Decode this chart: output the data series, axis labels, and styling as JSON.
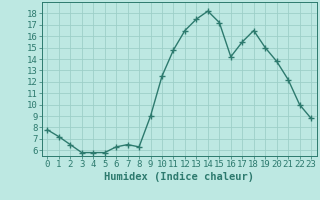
{
  "x": [
    0,
    1,
    2,
    3,
    4,
    5,
    6,
    7,
    8,
    9,
    10,
    11,
    12,
    13,
    14,
    15,
    16,
    17,
    18,
    19,
    20,
    21,
    22,
    23
  ],
  "y": [
    7.8,
    7.2,
    6.5,
    5.8,
    5.8,
    5.8,
    6.3,
    6.5,
    6.3,
    9.0,
    12.5,
    14.8,
    16.5,
    17.5,
    18.2,
    17.2,
    14.2,
    15.5,
    16.5,
    15.0,
    13.8,
    12.2,
    10.0,
    8.8
  ],
  "line_color": "#2d7a6e",
  "marker": "+",
  "marker_size": 4,
  "background_color": "#bde8e2",
  "grid_color": "#9dcfc8",
  "xlabel": "Humidex (Indice chaleur)",
  "tick_fontsize": 6.5,
  "xlabel_fontsize": 7.5,
  "ylim": [
    5.5,
    19.0
  ],
  "xlim": [
    -0.5,
    23.5
  ],
  "yticks": [
    6,
    7,
    8,
    9,
    10,
    11,
    12,
    13,
    14,
    15,
    16,
    17,
    18
  ],
  "xticks": [
    0,
    1,
    2,
    3,
    4,
    5,
    6,
    7,
    8,
    9,
    10,
    11,
    12,
    13,
    14,
    15,
    16,
    17,
    18,
    19,
    20,
    21,
    22,
    23
  ],
  "line_width": 1.0
}
